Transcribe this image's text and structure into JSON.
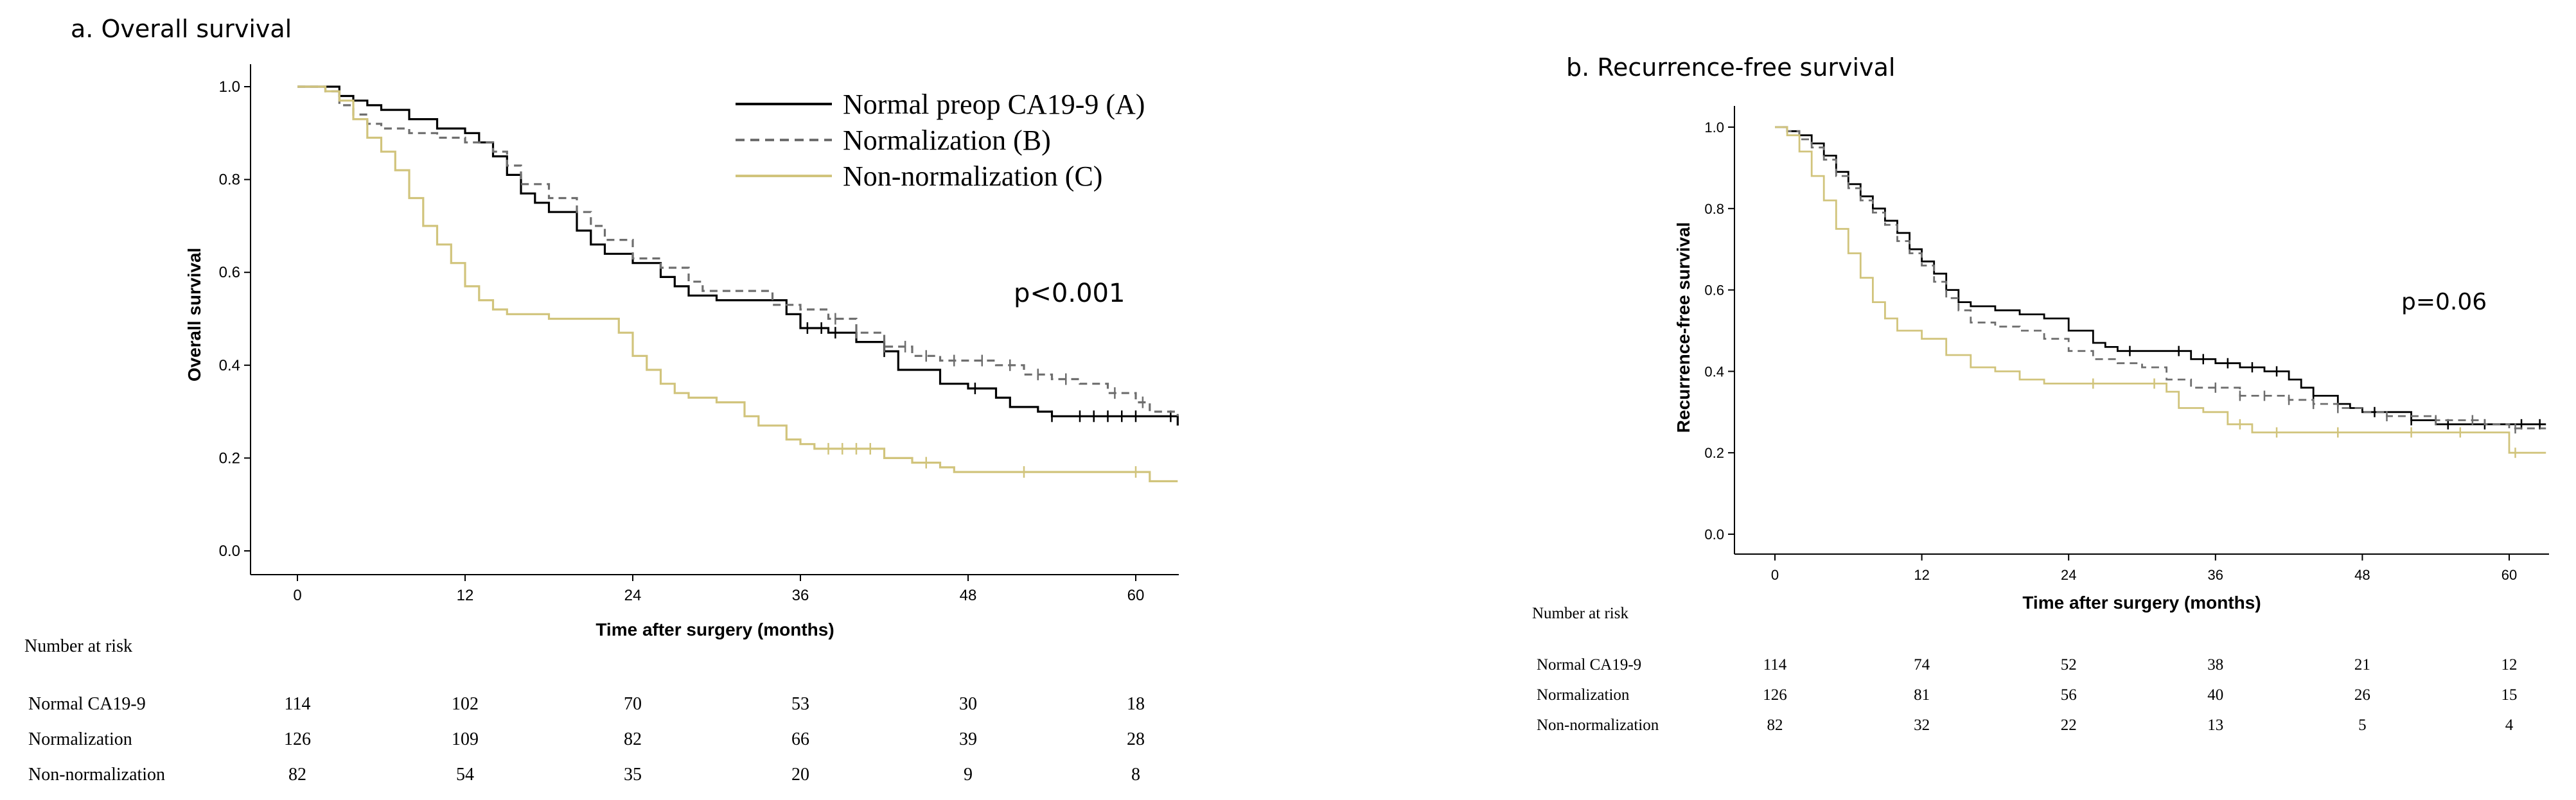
{
  "chart_data": [
    {
      "type": "line",
      "title": "a. Overall survival",
      "xlabel": "Time after surgery (months)",
      "ylabel": "Overall survival",
      "xlim": [
        -3,
        63
      ],
      "ylim": [
        -0.05,
        1.05
      ],
      "xticks": [
        "0",
        "12",
        "24",
        "36",
        "48",
        "60"
      ],
      "yticks": [
        "0.0",
        "0.2",
        "0.4",
        "0.6",
        "0.8",
        "1.0"
      ],
      "p_value": "p<0.001",
      "legend": [
        "Normal preop CA19-9 (A)",
        "Normalization (B)",
        "Non-normalization (C)"
      ],
      "series": [
        {
          "name": "Normal preop CA19-9 (A)",
          "color": "#000000",
          "dash": "solid",
          "points": [
            [
              0,
              1.0
            ],
            [
              2,
              1.0
            ],
            [
              3,
              0.98
            ],
            [
              4,
              0.97
            ],
            [
              5,
              0.96
            ],
            [
              6,
              0.95
            ],
            [
              8,
              0.93
            ],
            [
              10,
              0.91
            ],
            [
              12,
              0.9
            ],
            [
              13,
              0.88
            ],
            [
              14,
              0.85
            ],
            [
              15,
              0.81
            ],
            [
              16,
              0.77
            ],
            [
              17,
              0.75
            ],
            [
              18,
              0.73
            ],
            [
              20,
              0.69
            ],
            [
              21,
              0.66
            ],
            [
              22,
              0.64
            ],
            [
              24,
              0.62
            ],
            [
              26,
              0.59
            ],
            [
              27,
              0.57
            ],
            [
              28,
              0.55
            ],
            [
              30,
              0.54
            ],
            [
              34,
              0.54
            ],
            [
              35,
              0.51
            ],
            [
              36,
              0.48
            ],
            [
              38,
              0.47
            ],
            [
              40,
              0.45
            ],
            [
              42,
              0.43
            ],
            [
              43,
              0.39
            ],
            [
              45,
              0.39
            ],
            [
              46,
              0.36
            ],
            [
              48,
              0.35
            ],
            [
              50,
              0.33
            ],
            [
              51,
              0.31
            ],
            [
              53,
              0.3
            ],
            [
              54,
              0.29
            ],
            [
              62,
              0.29
            ],
            [
              63,
              0.27
            ]
          ],
          "censored": [
            36.5,
            37.5,
            38.5,
            42,
            48.5,
            54,
            56,
            57,
            58,
            59,
            60,
            62.5
          ]
        },
        {
          "name": "Normalization (B)",
          "color": "#6e6e6e",
          "dash": "dashed",
          "points": [
            [
              0,
              1.0
            ],
            [
              2,
              0.99
            ],
            [
              3,
              0.96
            ],
            [
              4,
              0.94
            ],
            [
              5,
              0.92
            ],
            [
              6,
              0.91
            ],
            [
              8,
              0.9
            ],
            [
              10,
              0.89
            ],
            [
              12,
              0.88
            ],
            [
              14,
              0.86
            ],
            [
              15,
              0.83
            ],
            [
              16,
              0.79
            ],
            [
              18,
              0.76
            ],
            [
              20,
              0.73
            ],
            [
              21,
              0.7
            ],
            [
              22,
              0.67
            ],
            [
              24,
              0.63
            ],
            [
              26,
              0.61
            ],
            [
              28,
              0.58
            ],
            [
              29,
              0.56
            ],
            [
              32,
              0.56
            ],
            [
              34,
              0.53
            ],
            [
              36,
              0.52
            ],
            [
              38,
              0.5
            ],
            [
              40,
              0.47
            ],
            [
              42,
              0.44
            ],
            [
              44,
              0.42
            ],
            [
              46,
              0.41
            ],
            [
              50,
              0.4
            ],
            [
              52,
              0.38
            ],
            [
              54,
              0.37
            ],
            [
              56,
              0.36
            ],
            [
              58,
              0.34
            ],
            [
              60,
              0.32
            ],
            [
              61,
              0.3
            ],
            [
              63,
              0.29
            ]
          ],
          "censored": [
            38.5,
            40,
            42,
            43.5,
            45,
            47,
            49,
            51,
            53,
            55,
            58.5,
            60.5
          ]
        },
        {
          "name": "Non-normalization (C)",
          "color": "#d1c47c",
          "dash": "solid",
          "points": [
            [
              0,
              1.0
            ],
            [
              2,
              0.99
            ],
            [
              3,
              0.97
            ],
            [
              4,
              0.93
            ],
            [
              5,
              0.89
            ],
            [
              6,
              0.86
            ],
            [
              7,
              0.82
            ],
            [
              8,
              0.76
            ],
            [
              9,
              0.7
            ],
            [
              10,
              0.66
            ],
            [
              11,
              0.62
            ],
            [
              12,
              0.57
            ],
            [
              13,
              0.54
            ],
            [
              14,
              0.52
            ],
            [
              15,
              0.51
            ],
            [
              17,
              0.51
            ],
            [
              18,
              0.5
            ],
            [
              22,
              0.5
            ],
            [
              23,
              0.47
            ],
            [
              24,
              0.42
            ],
            [
              25,
              0.39
            ],
            [
              26,
              0.36
            ],
            [
              27,
              0.34
            ],
            [
              28,
              0.33
            ],
            [
              30,
              0.32
            ],
            [
              32,
              0.29
            ],
            [
              33,
              0.27
            ],
            [
              35,
              0.24
            ],
            [
              36,
              0.23
            ],
            [
              37,
              0.22
            ],
            [
              40,
              0.22
            ],
            [
              42,
              0.2
            ],
            [
              44,
              0.19
            ],
            [
              46,
              0.18
            ],
            [
              47,
              0.17
            ],
            [
              60,
              0.17
            ],
            [
              61,
              0.15
            ],
            [
              63,
              0.15
            ]
          ],
          "censored": [
            38,
            39,
            40,
            41,
            45,
            52,
            60
          ]
        }
      ],
      "risk_table": {
        "header": "Number at risk",
        "times": [
          0,
          12,
          24,
          36,
          48,
          60
        ],
        "rows": [
          {
            "label": "Normal CA19-9",
            "values": [
              "114",
              "102",
              "70",
              "53",
              "30",
              "18"
            ]
          },
          {
            "label": "Normalization",
            "values": [
              "126",
              "109",
              "82",
              "66",
              "39",
              "28"
            ]
          },
          {
            "label": "Non-normalization",
            "values": [
              "82",
              "54",
              "35",
              "20",
              "9",
              "8"
            ]
          }
        ]
      }
    },
    {
      "type": "line",
      "title": "b. Recurrence-free survival",
      "xlabel": "Time after surgery (months)",
      "ylabel": "Recurrence-free survival",
      "xlim": [
        -3,
        63
      ],
      "ylim": [
        -0.05,
        1.05
      ],
      "xticks": [
        "0",
        "12",
        "24",
        "36",
        "48",
        "60"
      ],
      "yticks": [
        "0.0",
        "0.2",
        "0.4",
        "0.6",
        "0.8",
        "1.0"
      ],
      "p_value": "p=0.06",
      "series": [
        {
          "name": "Normal CA19-9",
          "color": "#000000",
          "dash": "solid",
          "points": [
            [
              0,
              1.0
            ],
            [
              1,
              0.99
            ],
            [
              2,
              0.98
            ],
            [
              3,
              0.96
            ],
            [
              4,
              0.93
            ],
            [
              5,
              0.89
            ],
            [
              6,
              0.86
            ],
            [
              7,
              0.83
            ],
            [
              8,
              0.8
            ],
            [
              9,
              0.77
            ],
            [
              10,
              0.74
            ],
            [
              11,
              0.7
            ],
            [
              12,
              0.67
            ],
            [
              13,
              0.64
            ],
            [
              14,
              0.6
            ],
            [
              15,
              0.57
            ],
            [
              16,
              0.56
            ],
            [
              18,
              0.55
            ],
            [
              20,
              0.54
            ],
            [
              22,
              0.53
            ],
            [
              24,
              0.5
            ],
            [
              26,
              0.47
            ],
            [
              27,
              0.46
            ],
            [
              28,
              0.45
            ],
            [
              33,
              0.45
            ],
            [
              34,
              0.43
            ],
            [
              36,
              0.42
            ],
            [
              38,
              0.41
            ],
            [
              40,
              0.4
            ],
            [
              42,
              0.38
            ],
            [
              43,
              0.36
            ],
            [
              44,
              0.34
            ],
            [
              46,
              0.32
            ],
            [
              47,
              0.31
            ],
            [
              48,
              0.3
            ],
            [
              52,
              0.28
            ],
            [
              54,
              0.27
            ],
            [
              60,
              0.27
            ],
            [
              63,
              0.27
            ]
          ],
          "censored": [
            29,
            33,
            35,
            37,
            39,
            41,
            44,
            46,
            49,
            52,
            55,
            58,
            61,
            62.5
          ]
        },
        {
          "name": "Normalization",
          "color": "#6e6e6e",
          "dash": "dashed",
          "points": [
            [
              0,
              1.0
            ],
            [
              1,
              0.99
            ],
            [
              2,
              0.97
            ],
            [
              3,
              0.95
            ],
            [
              4,
              0.92
            ],
            [
              5,
              0.88
            ],
            [
              6,
              0.85
            ],
            [
              7,
              0.82
            ],
            [
              8,
              0.79
            ],
            [
              9,
              0.76
            ],
            [
              10,
              0.72
            ],
            [
              11,
              0.69
            ],
            [
              12,
              0.66
            ],
            [
              13,
              0.62
            ],
            [
              14,
              0.58
            ],
            [
              15,
              0.55
            ],
            [
              16,
              0.52
            ],
            [
              18,
              0.51
            ],
            [
              20,
              0.5
            ],
            [
              22,
              0.48
            ],
            [
              24,
              0.45
            ],
            [
              26,
              0.43
            ],
            [
              28,
              0.42
            ],
            [
              30,
              0.41
            ],
            [
              32,
              0.38
            ],
            [
              34,
              0.36
            ],
            [
              36,
              0.36
            ],
            [
              38,
              0.34
            ],
            [
              42,
              0.33
            ],
            [
              44,
              0.32
            ],
            [
              46,
              0.31
            ],
            [
              48,
              0.3
            ],
            [
              50,
              0.29
            ],
            [
              54,
              0.28
            ],
            [
              58,
              0.27
            ],
            [
              60,
              0.26
            ],
            [
              63,
              0.26
            ]
          ],
          "censored": [
            36,
            38,
            40,
            42,
            44,
            46,
            50,
            54,
            57,
            60.5
          ]
        },
        {
          "name": "Non-normalization",
          "color": "#d1c47c",
          "dash": "solid",
          "points": [
            [
              0,
              1.0
            ],
            [
              1,
              0.98
            ],
            [
              2,
              0.94
            ],
            [
              3,
              0.88
            ],
            [
              4,
              0.82
            ],
            [
              5,
              0.75
            ],
            [
              6,
              0.69
            ],
            [
              7,
              0.63
            ],
            [
              8,
              0.57
            ],
            [
              9,
              0.53
            ],
            [
              10,
              0.5
            ],
            [
              12,
              0.48
            ],
            [
              14,
              0.44
            ],
            [
              16,
              0.41
            ],
            [
              18,
              0.4
            ],
            [
              20,
              0.38
            ],
            [
              22,
              0.37
            ],
            [
              30,
              0.37
            ],
            [
              32,
              0.35
            ],
            [
              33,
              0.31
            ],
            [
              35,
              0.3
            ],
            [
              37,
              0.27
            ],
            [
              39,
              0.25
            ],
            [
              40,
              0.25
            ],
            [
              59,
              0.25
            ],
            [
              60,
              0.2
            ],
            [
              63,
              0.2
            ]
          ],
          "censored": [
            26,
            31,
            38,
            41,
            46,
            52,
            56,
            60.5
          ]
        }
      ],
      "risk_table": {
        "header": "Number at risk",
        "times": [
          0,
          12,
          24,
          36,
          48,
          60
        ],
        "rows": [
          {
            "label": "Normal CA19-9",
            "values": [
              "114",
              "74",
              "52",
              "38",
              "21",
              "12"
            ]
          },
          {
            "label": "Normalization",
            "values": [
              "126",
              "81",
              "56",
              "40",
              "26",
              "15"
            ]
          },
          {
            "label": "Non-normalization",
            "values": [
              "82",
              "32",
              "22",
              "13",
              "5",
              "4"
            ]
          }
        ]
      }
    }
  ]
}
